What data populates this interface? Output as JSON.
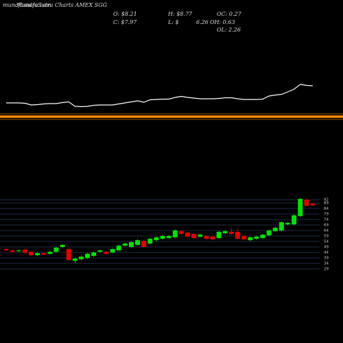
{
  "site": "munafasutra.com",
  "header": {
    "title": "MunafaSutra Charts AMEX SGG",
    "open": "O: $8.21",
    "high": "H: $8.77",
    "oc": "OC: 0.27",
    "close": "C: $7.97",
    "low_prefix": "L: $",
    "low_value": "6.26",
    "oh": "OH: 0.63",
    "ol": "OL: 2.26"
  },
  "chart_data": [
    {
      "type": "line",
      "color": "#ffffff",
      "ylim": [
        0,
        100
      ],
      "values": [
        50,
        50,
        50,
        49.5,
        47,
        47.5,
        48.5,
        49,
        49,
        50.5,
        51.5,
        45,
        44.5,
        45,
        46.5,
        47,
        47,
        47,
        48.5,
        50,
        51.5,
        53,
        51,
        54.5,
        55,
        55.5,
        55.5,
        58,
        59.5,
        58,
        57,
        56,
        56,
        56,
        56.5,
        57.5,
        57.5,
        56,
        55,
        55,
        55,
        55.5,
        60,
        61.5,
        62.5,
        66,
        70,
        77,
        75.5,
        75
      ]
    },
    {
      "type": "candlestick",
      "up_color": "#00e000",
      "down_color": "#e00000",
      "grid": true,
      "grid_color": "#2a3a5a",
      "ylim": [
        26,
        94
      ],
      "yticks": [
        92,
        89,
        84,
        79,
        74,
        69,
        64,
        59,
        54,
        49,
        44,
        39,
        34,
        29
      ],
      "open": [
        47.1,
        45.9,
        45.2,
        46.5,
        44.6,
        41.5,
        43.4,
        42.8,
        44.6,
        49,
        47.1,
        36.5,
        37.8,
        39,
        40.9,
        44.6,
        44.6,
        44,
        45.9,
        50.2,
        49,
        50.9,
        54.6,
        52.1,
        55.2,
        56.5,
        57.1,
        57.8,
        63.4,
        62.1,
        60.9,
        58.4,
        59,
        58.4,
        57.1,
        61.5,
        62.8,
        62.8,
        59,
        55.2,
        56.5,
        57.1,
        59.6,
        63.4,
        64,
        69.6,
        69.6,
        77.1,
        92.1,
        88.4
      ],
      "close": [
        45.9,
        44.6,
        45.9,
        44,
        41.5,
        43.4,
        42.1,
        44.6,
        48.4,
        50.9,
        37.1,
        38.4,
        40.2,
        42.8,
        44,
        45.9,
        42.8,
        47.1,
        50.2,
        52.1,
        53.4,
        55.2,
        49,
        56.5,
        57.8,
        59,
        59,
        64,
        60.9,
        58.4,
        57.1,
        60.2,
        56.5,
        55.9,
        62.8,
        63.4,
        60.9,
        56.5,
        55.9,
        57.8,
        58.4,
        60.2,
        64,
        66.5,
        71.5,
        70.9,
        77.8,
        92.8,
        86.5,
        87.1
      ],
      "high": [
        48.1,
        46.9,
        46.9,
        47.5,
        45.6,
        44.4,
        44.4,
        45.6,
        49.4,
        51.9,
        48.1,
        39.4,
        41.2,
        43.8,
        45,
        46.9,
        45.6,
        48.1,
        51.2,
        53.1,
        54.4,
        56.2,
        55.6,
        57.5,
        58.8,
        60,
        60,
        65,
        64.4,
        63.1,
        61.9,
        61.2,
        60,
        59.4,
        63.8,
        64.4,
        65.9,
        65.9,
        60,
        58.8,
        59.4,
        61.2,
        65,
        67.5,
        72.5,
        71.9,
        78.8,
        93.8,
        93.1,
        89.4
      ],
      "low": [
        44.9,
        43.6,
        44.2,
        43,
        40.5,
        40.5,
        41.1,
        41.8,
        43.6,
        48,
        36.1,
        34.6,
        36.8,
        38,
        39.9,
        43.6,
        41.8,
        43,
        44.9,
        49.2,
        48,
        49.9,
        48,
        51.1,
        54.2,
        55.5,
        56.1,
        56.8,
        59.9,
        57.4,
        56.1,
        57.4,
        55.5,
        54.9,
        56.1,
        60.5,
        59.9,
        55.5,
        54.9,
        54.2,
        55.5,
        56.1,
        58.6,
        62.4,
        63,
        68.6,
        68.6,
        76.1,
        85.5,
        86.1
      ]
    }
  ]
}
